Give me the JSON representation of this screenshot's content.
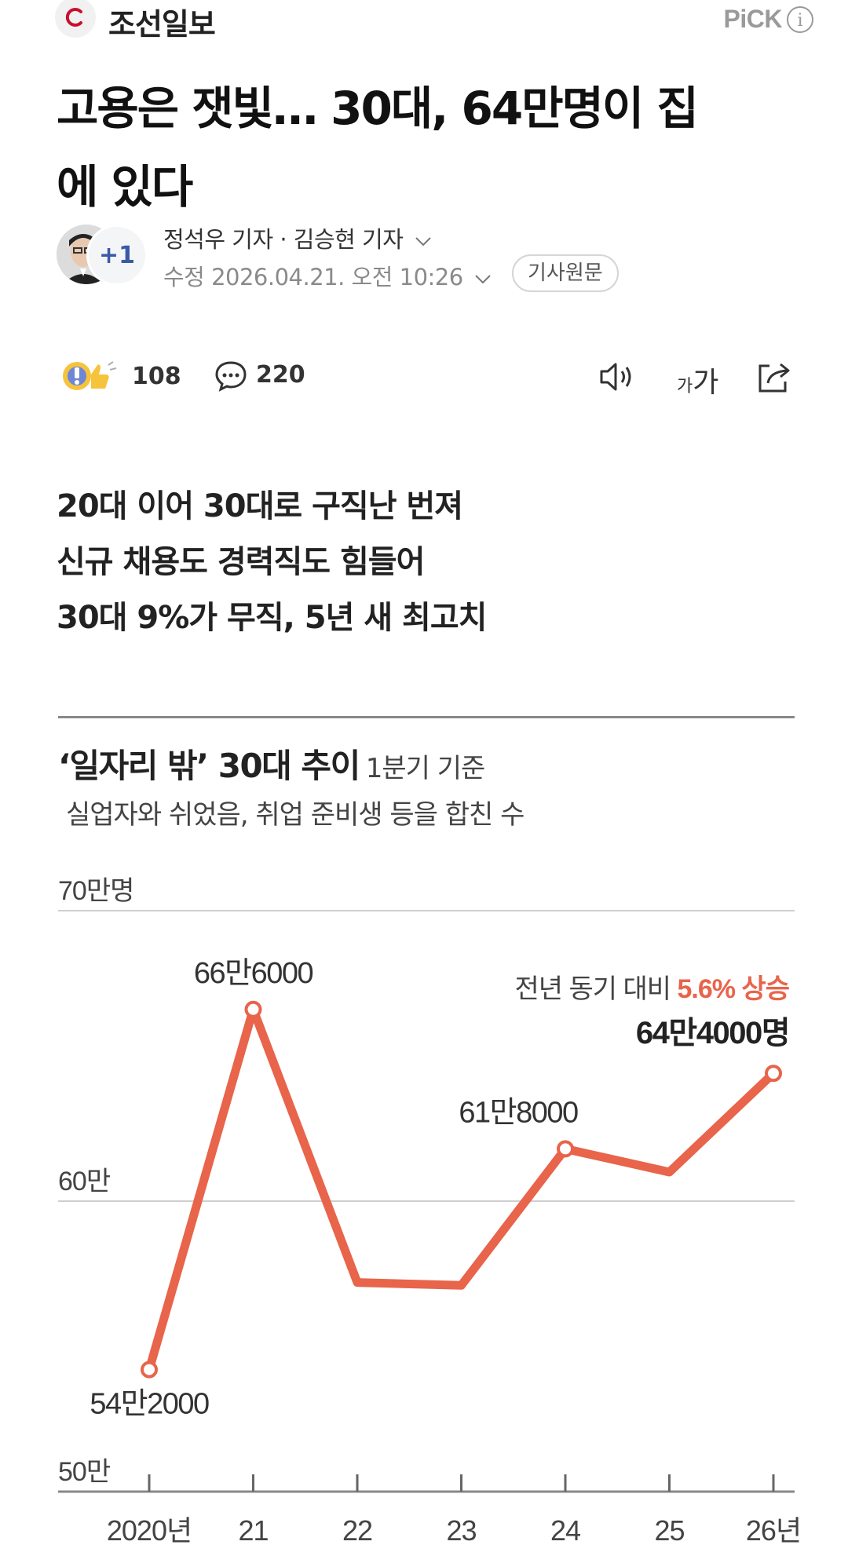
{
  "header": {
    "press_name": "조선일보",
    "pick_label": "PiCK",
    "info_icon": "info-icon"
  },
  "article": {
    "headline_line1": "고용은 잿빛… 30대, 64만명이 집",
    "headline_line2": "에 있다",
    "reporters": "정석우 기자 · 김승현 기자",
    "reporter_extra": "+1",
    "updated": "수정 2026.04.21. 오전 10:26",
    "original_button": "기사원문"
  },
  "toolbar": {
    "reaction_count": "108",
    "comment_count": "220",
    "font_small": "가",
    "font_large": "가"
  },
  "summary": [
    "20대 이어 30대로 구직난 번져",
    "신규 채용도 경력직도 힘들어",
    "30대 9%가 무직, 5년 새 최고치"
  ],
  "chart_data": {
    "type": "line",
    "title": "‘일자리 밖’ 30대 추이",
    "title_basis": "1분기 기준",
    "subtitle": "실업자와 쉬었음, 취업 준비생 등을 합친 수",
    "y_ticks": [
      "70만명",
      "60만",
      "50만"
    ],
    "ylim": [
      500000,
      700000
    ],
    "categories": [
      "2020년",
      "21",
      "22",
      "23",
      "24",
      "25",
      "26년"
    ],
    "values": [
      542000,
      666000,
      572000,
      571000,
      618000,
      610000,
      644000
    ],
    "point_labels": [
      "54만2000",
      "66만6000",
      "",
      "",
      "61만8000",
      "",
      "64만4000명"
    ],
    "annotation_prefix": "전년 동기 대비",
    "annotation_highlight": "5.6% 상승",
    "line_color": "#e8644a",
    "grid": true
  }
}
